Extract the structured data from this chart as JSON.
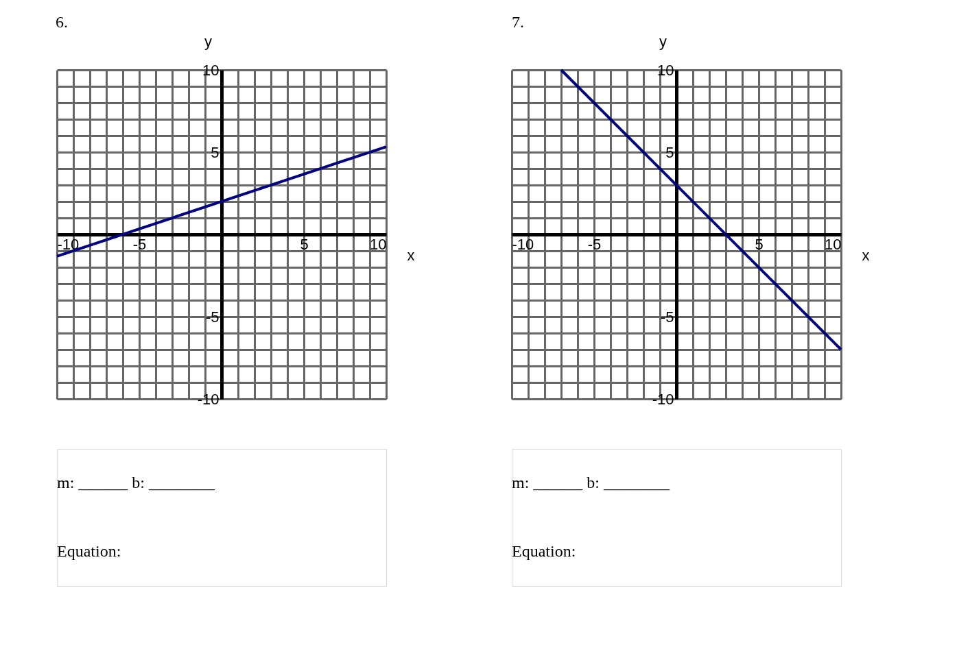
{
  "chart_data": [
    {
      "type": "line",
      "title": "6.",
      "xlabel": "x",
      "ylabel": "y",
      "x": [
        -10,
        10
      ],
      "series": [
        {
          "color": "#000080",
          "values": [
            -1.33,
            5.33
          ]
        }
      ],
      "xlim": [
        -10,
        10
      ],
      "ylim": [
        -10,
        10
      ],
      "xticks": [
        -10,
        {
          "value": -9,
          "label": null
        },
        {
          "value": -8,
          "label": null
        },
        {
          "value": -7,
          "label": null
        },
        {
          "value": -6,
          "label": null
        },
        -5,
        {
          "value": -4,
          "label": null
        },
        {
          "value": -3,
          "label": null
        },
        {
          "value": -2,
          "label": null
        },
        {
          "value": -1,
          "label": null
        },
        {
          "value": 0,
          "label": null
        },
        {
          "value": 1,
          "label": null
        },
        {
          "value": 2,
          "label": null
        },
        {
          "value": 3,
          "label": null
        },
        {
          "value": 4,
          "label": null
        },
        5,
        {
          "value": 6,
          "label": null
        },
        {
          "value": 7,
          "label": null
        },
        {
          "value": 8,
          "label": null
        },
        {
          "value": 9,
          "label": null
        },
        10
      ],
      "yticks": [
        -10,
        {
          "value": -9,
          "label": null
        },
        {
          "value": -8,
          "label": null
        },
        {
          "value": -7,
          "label": null
        },
        {
          "value": -6,
          "label": null
        },
        -5,
        {
          "value": -4,
          "label": null
        },
        {
          "value": -3,
          "label": null
        },
        {
          "value": -2,
          "label": null
        },
        {
          "value": -1,
          "label": null
        },
        {
          "value": 0,
          "label": null
        },
        {
          "value": 1,
          "label": null
        },
        {
          "value": 2,
          "label": null
        },
        {
          "value": 3,
          "label": null
        },
        {
          "value": 4,
          "label": null
        },
        5,
        {
          "value": 6,
          "label": null
        },
        {
          "value": 7,
          "label": null
        },
        {
          "value": 8,
          "label": null
        },
        {
          "value": 9,
          "label": null
        },
        10
      ],
      "grid": true,
      "annotations": [
        "m: ______ b: ________",
        "Equation:"
      ]
    },
    {
      "type": "line",
      "title": "7.",
      "xlabel": "x",
      "ylabel": "y",
      "x": [
        -7,
        10
      ],
      "series": [
        {
          "color": "#000080",
          "values": [
            10,
            -7
          ]
        }
      ],
      "xlim": [
        -10,
        10
      ],
      "ylim": [
        -10,
        10
      ],
      "xticks": [
        -10,
        {
          "value": -9,
          "label": null
        },
        {
          "value": -8,
          "label": null
        },
        {
          "value": -7,
          "label": null
        },
        {
          "value": -6,
          "label": null
        },
        -5,
        {
          "value": -4,
          "label": null
        },
        {
          "value": -3,
          "label": null
        },
        {
          "value": -2,
          "label": null
        },
        {
          "value": -1,
          "label": null
        },
        {
          "value": 0,
          "label": null
        },
        {
          "value": 1,
          "label": null
        },
        {
          "value": 2,
          "label": null
        },
        {
          "value": 3,
          "label": null
        },
        {
          "value": 4,
          "label": null
        },
        5,
        {
          "value": 6,
          "label": null
        },
        {
          "value": 7,
          "label": null
        },
        {
          "value": 8,
          "label": null
        },
        {
          "value": 9,
          "label": null
        },
        10
      ],
      "yticks": [
        -10,
        {
          "value": -9,
          "label": null
        },
        {
          "value": -8,
          "label": null
        },
        {
          "value": -7,
          "label": null
        },
        {
          "value": -6,
          "label": null
        },
        -5,
        {
          "value": -4,
          "label": null
        },
        {
          "value": -3,
          "label": null
        },
        {
          "value": -2,
          "label": null
        },
        {
          "value": -1,
          "label": null
        },
        {
          "value": 0,
          "label": null
        },
        {
          "value": 1,
          "label": null
        },
        {
          "value": 2,
          "label": null
        },
        {
          "value": 3,
          "label": null
        },
        {
          "value": 4,
          "label": null
        },
        5,
        {
          "value": 6,
          "label": null
        },
        {
          "value": 7,
          "label": null
        },
        {
          "value": 8,
          "label": null
        },
        {
          "value": 9,
          "label": null
        },
        10
      ],
      "grid": true,
      "annotations": [
        "m: ______ b: ________",
        "Equation:"
      ]
    }
  ]
}
